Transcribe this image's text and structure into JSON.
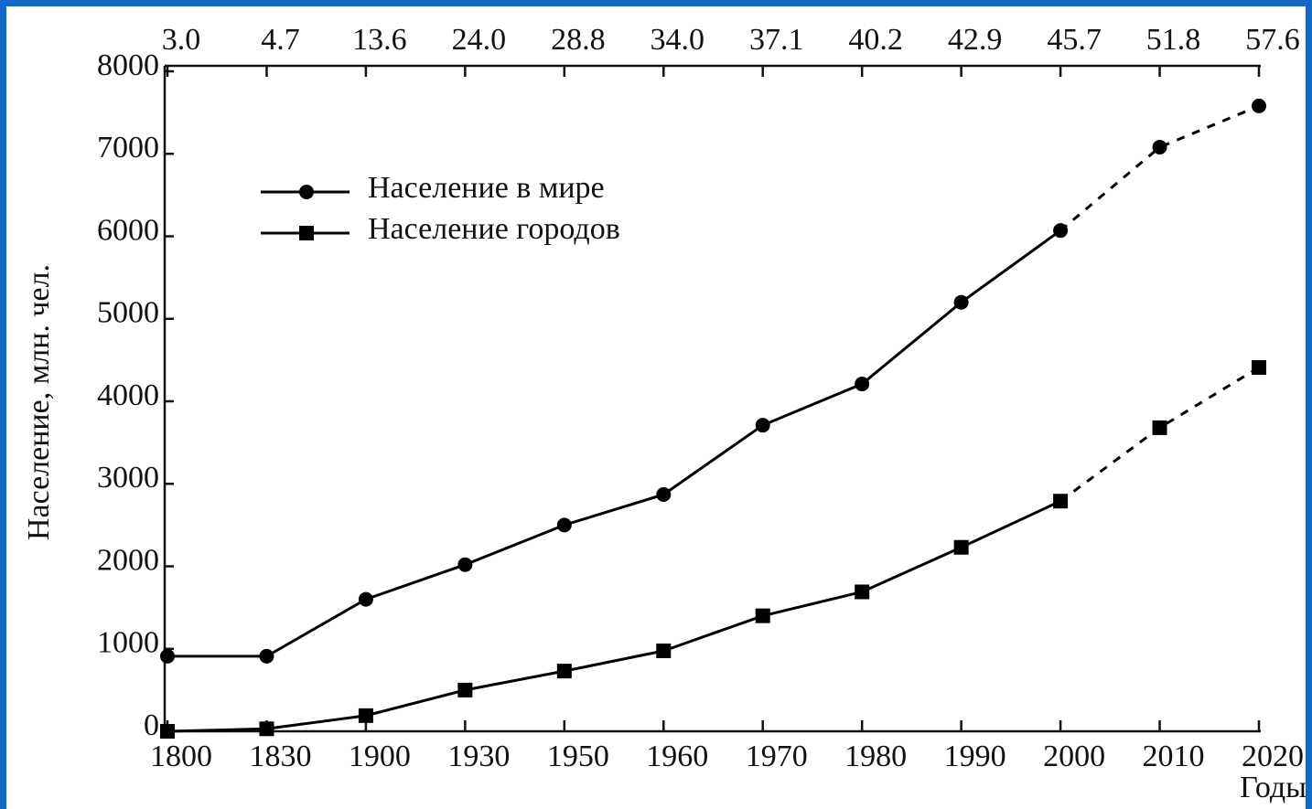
{
  "chart_data": {
    "type": "line",
    "categories": [
      "1800",
      "1830",
      "1900",
      "1930",
      "1950",
      "1960",
      "1970",
      "1980",
      "1990",
      "2000",
      "2010",
      "2020"
    ],
    "top_labels": [
      "3.0",
      "4.7",
      "13.6",
      "24.0",
      "28.8",
      "34.0",
      "37.1",
      "40.2",
      "42.9",
      "45.7",
      "51.8",
      "57.6"
    ],
    "series": [
      {
        "name": "Население в мире",
        "color": "#000000",
        "marker": "circle",
        "values": [
          910,
          910,
          1600,
          2020,
          2500,
          2870,
          3710,
          4210,
          5200,
          6070,
          7080,
          7580
        ]
      },
      {
        "name": "Население городов",
        "color": "#000000",
        "marker": "square",
        "values": [
          0,
          30,
          190,
          500,
          730,
          975,
          1400,
          1690,
          2230,
          2790,
          3680,
          4410
        ]
      }
    ],
    "forecast_start": "2000",
    "ylim": [
      0,
      8000
    ],
    "yticks": [
      0,
      1000,
      2000,
      3000,
      4000,
      5000,
      6000,
      7000,
      8000
    ],
    "ylabel": "Население, млн. чел.",
    "xlabel": "Годы",
    "grid": false
  }
}
